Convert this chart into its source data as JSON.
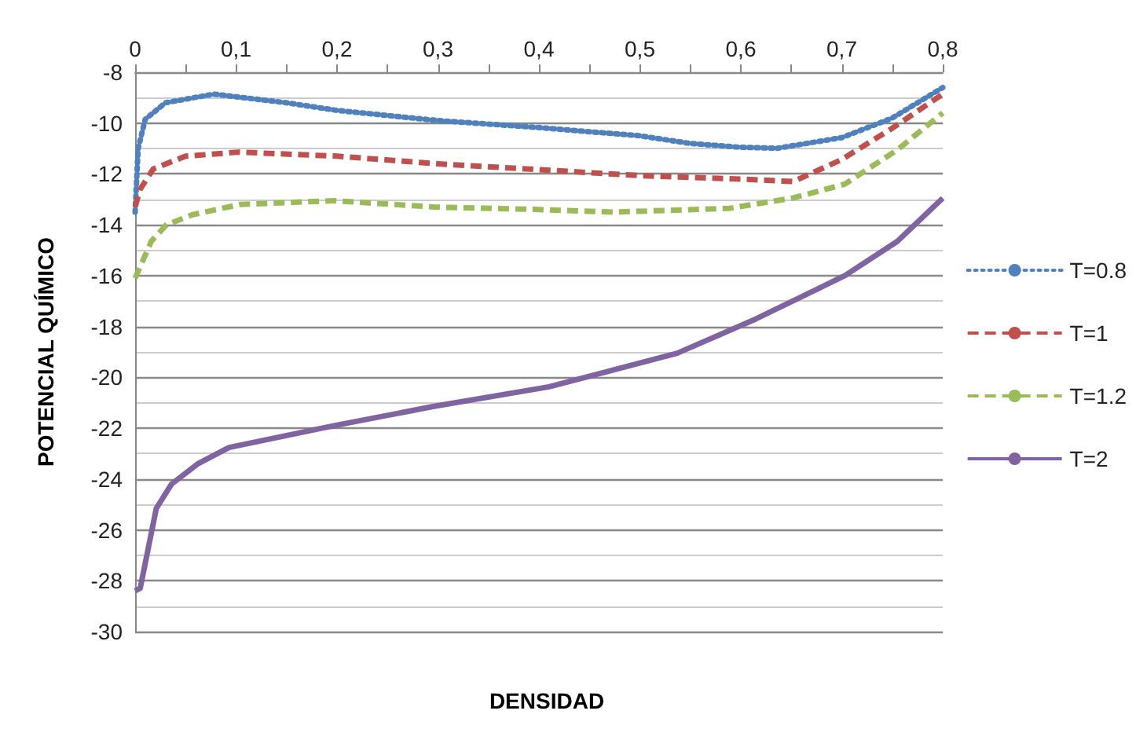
{
  "chart_data": {
    "type": "line",
    "xlabel": "DENSIDAD",
    "ylabel": "POTENCIAL QUÍMICO",
    "xlim": [
      0,
      0.8
    ],
    "xticks": [
      {
        "value": 0,
        "label": "0"
      },
      {
        "value": 0.05,
        "label": null
      },
      {
        "value": 0.1,
        "label": "0,1"
      },
      {
        "value": 0.15,
        "label": null
      },
      {
        "value": 0.2,
        "label": "0,2"
      },
      {
        "value": 0.25,
        "label": null
      },
      {
        "value": 0.3,
        "label": "0,3"
      },
      {
        "value": 0.35,
        "label": null
      },
      {
        "value": 0.4,
        "label": "0,4"
      },
      {
        "value": 0.45,
        "label": null
      },
      {
        "value": 0.5,
        "label": "0,5"
      },
      {
        "value": 0.55,
        "label": null
      },
      {
        "value": 0.6,
        "label": "0,6"
      },
      {
        "value": 0.65,
        "label": null
      },
      {
        "value": 0.7,
        "label": "0,7"
      },
      {
        "value": 0.75,
        "label": null
      },
      {
        "value": 0.8,
        "label": "0,8"
      }
    ],
    "ylim": [
      -30,
      -8
    ],
    "yticks": [
      -30,
      -28,
      -26,
      -24,
      -22,
      -20,
      -18,
      -16,
      -14,
      -12,
      -10,
      -8
    ],
    "grid": "y",
    "legend": "right",
    "marker": "none",
    "series": [
      {
        "name": "T=0.8",
        "color": "#4f81bd",
        "line_style": "dotted",
        "x": [
          0,
          0.003,
          0.01,
          0.03,
          0.078,
          0.15,
          0.2,
          0.3,
          0.405,
          0.5,
          0.55,
          0.6,
          0.636,
          0.7,
          0.75,
          0.8
        ],
        "values": [
          -13.5,
          -11,
          -9.85,
          -9.2,
          -8.86,
          -9.2,
          -9.5,
          -9.9,
          -10.19,
          -10.5,
          -10.8,
          -10.95,
          -10.99,
          -10.57,
          -9.8,
          -8.6
        ]
      },
      {
        "name": "T=1",
        "color": "#c0504d",
        "line_style": "dashed",
        "x": [
          0,
          0.005,
          0.018,
          0.05,
          0.103,
          0.2,
          0.3,
          0.43,
          0.502,
          0.6,
          0.652,
          0.7,
          0.75,
          0.8
        ],
        "values": [
          -13.3,
          -12.6,
          -11.8,
          -11.3,
          -11.14,
          -11.3,
          -11.6,
          -11.9,
          -12.07,
          -12.2,
          -12.3,
          -11.43,
          -10.2,
          -8.86
        ]
      },
      {
        "name": "T=1.2",
        "color": "#9bbb59",
        "line_style": "dashed",
        "x": [
          0,
          0.016,
          0.031,
          0.057,
          0.104,
          0.197,
          0.296,
          0.4,
          0.475,
          0.589,
          0.652,
          0.703,
          0.755,
          0.8
        ],
        "values": [
          -16.1,
          -14.65,
          -14,
          -13.6,
          -13.2,
          -13.05,
          -13.3,
          -13.4,
          -13.5,
          -13.35,
          -12.94,
          -12.4,
          -11.05,
          -9.6
        ]
      },
      {
        "name": "T=2",
        "color": "#8064a2",
        "line_style": "solid",
        "x": [
          0,
          0.005,
          0.021,
          0.036,
          0.062,
          0.093,
          0.197,
          0.296,
          0.41,
          0.537,
          0.615,
          0.703,
          0.755,
          0.8
        ],
        "values": [
          -28.4,
          -28.3,
          -25.15,
          -24.2,
          -23.4,
          -22.76,
          -21.9,
          -21.14,
          -20.37,
          -19.05,
          -17.7,
          -16,
          -14.65,
          -12.95
        ]
      }
    ]
  }
}
